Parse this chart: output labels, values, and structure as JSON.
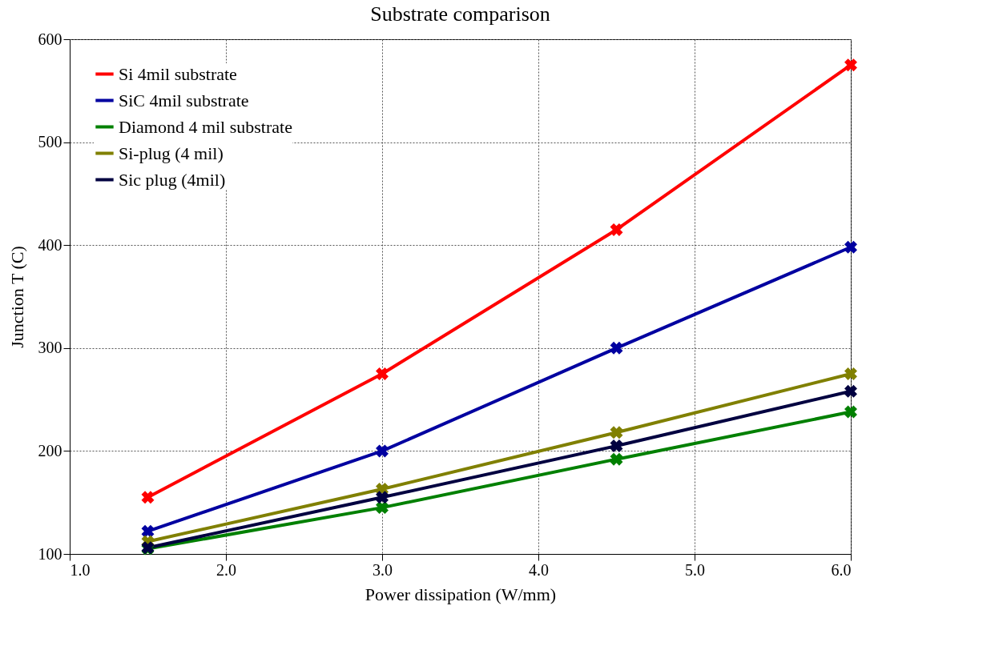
{
  "chart_data": {
    "type": "line",
    "title": "Substrate comparison",
    "xlabel": "Power dissipation (W/mm)",
    "ylabel": "Junction T (C)",
    "x": [
      1.5,
      3.0,
      4.5,
      6.0
    ],
    "series": [
      {
        "name": "Si 4mil substrate",
        "color": "#ff0000",
        "values": [
          155,
          275,
          415,
          575
        ]
      },
      {
        "name": "SiC 4mil substrate",
        "color": "#0000a0",
        "values": [
          122,
          200,
          300,
          398
        ]
      },
      {
        "name": "Diamond 4 mil substrate",
        "color": "#008000",
        "values": [
          105,
          145,
          192,
          238
        ]
      },
      {
        "name": "Si-plug (4 mil)",
        "color": "#808000",
        "values": [
          112,
          163,
          218,
          275
        ]
      },
      {
        "name": "Sic plug (4mil)",
        "color": "#000040",
        "values": [
          106,
          155,
          205,
          258
        ]
      }
    ],
    "xlim": [
      1.0,
      6.0
    ],
    "xticks": [
      {
        "value": 1,
        "label": "1.0"
      },
      {
        "value": 2,
        "label": "2.0"
      },
      {
        "value": 3,
        "label": "3.0"
      },
      {
        "value": 4,
        "label": "4.0"
      },
      {
        "value": 5,
        "label": "5.0"
      },
      {
        "value": 6,
        "label": "6.0"
      }
    ],
    "ylim": [
      100,
      600
    ],
    "yticks": [
      100,
      200,
      300,
      400,
      500,
      600
    ],
    "grid": true,
    "legend": "top left",
    "marker": "cross",
    "line_style": "solid"
  }
}
